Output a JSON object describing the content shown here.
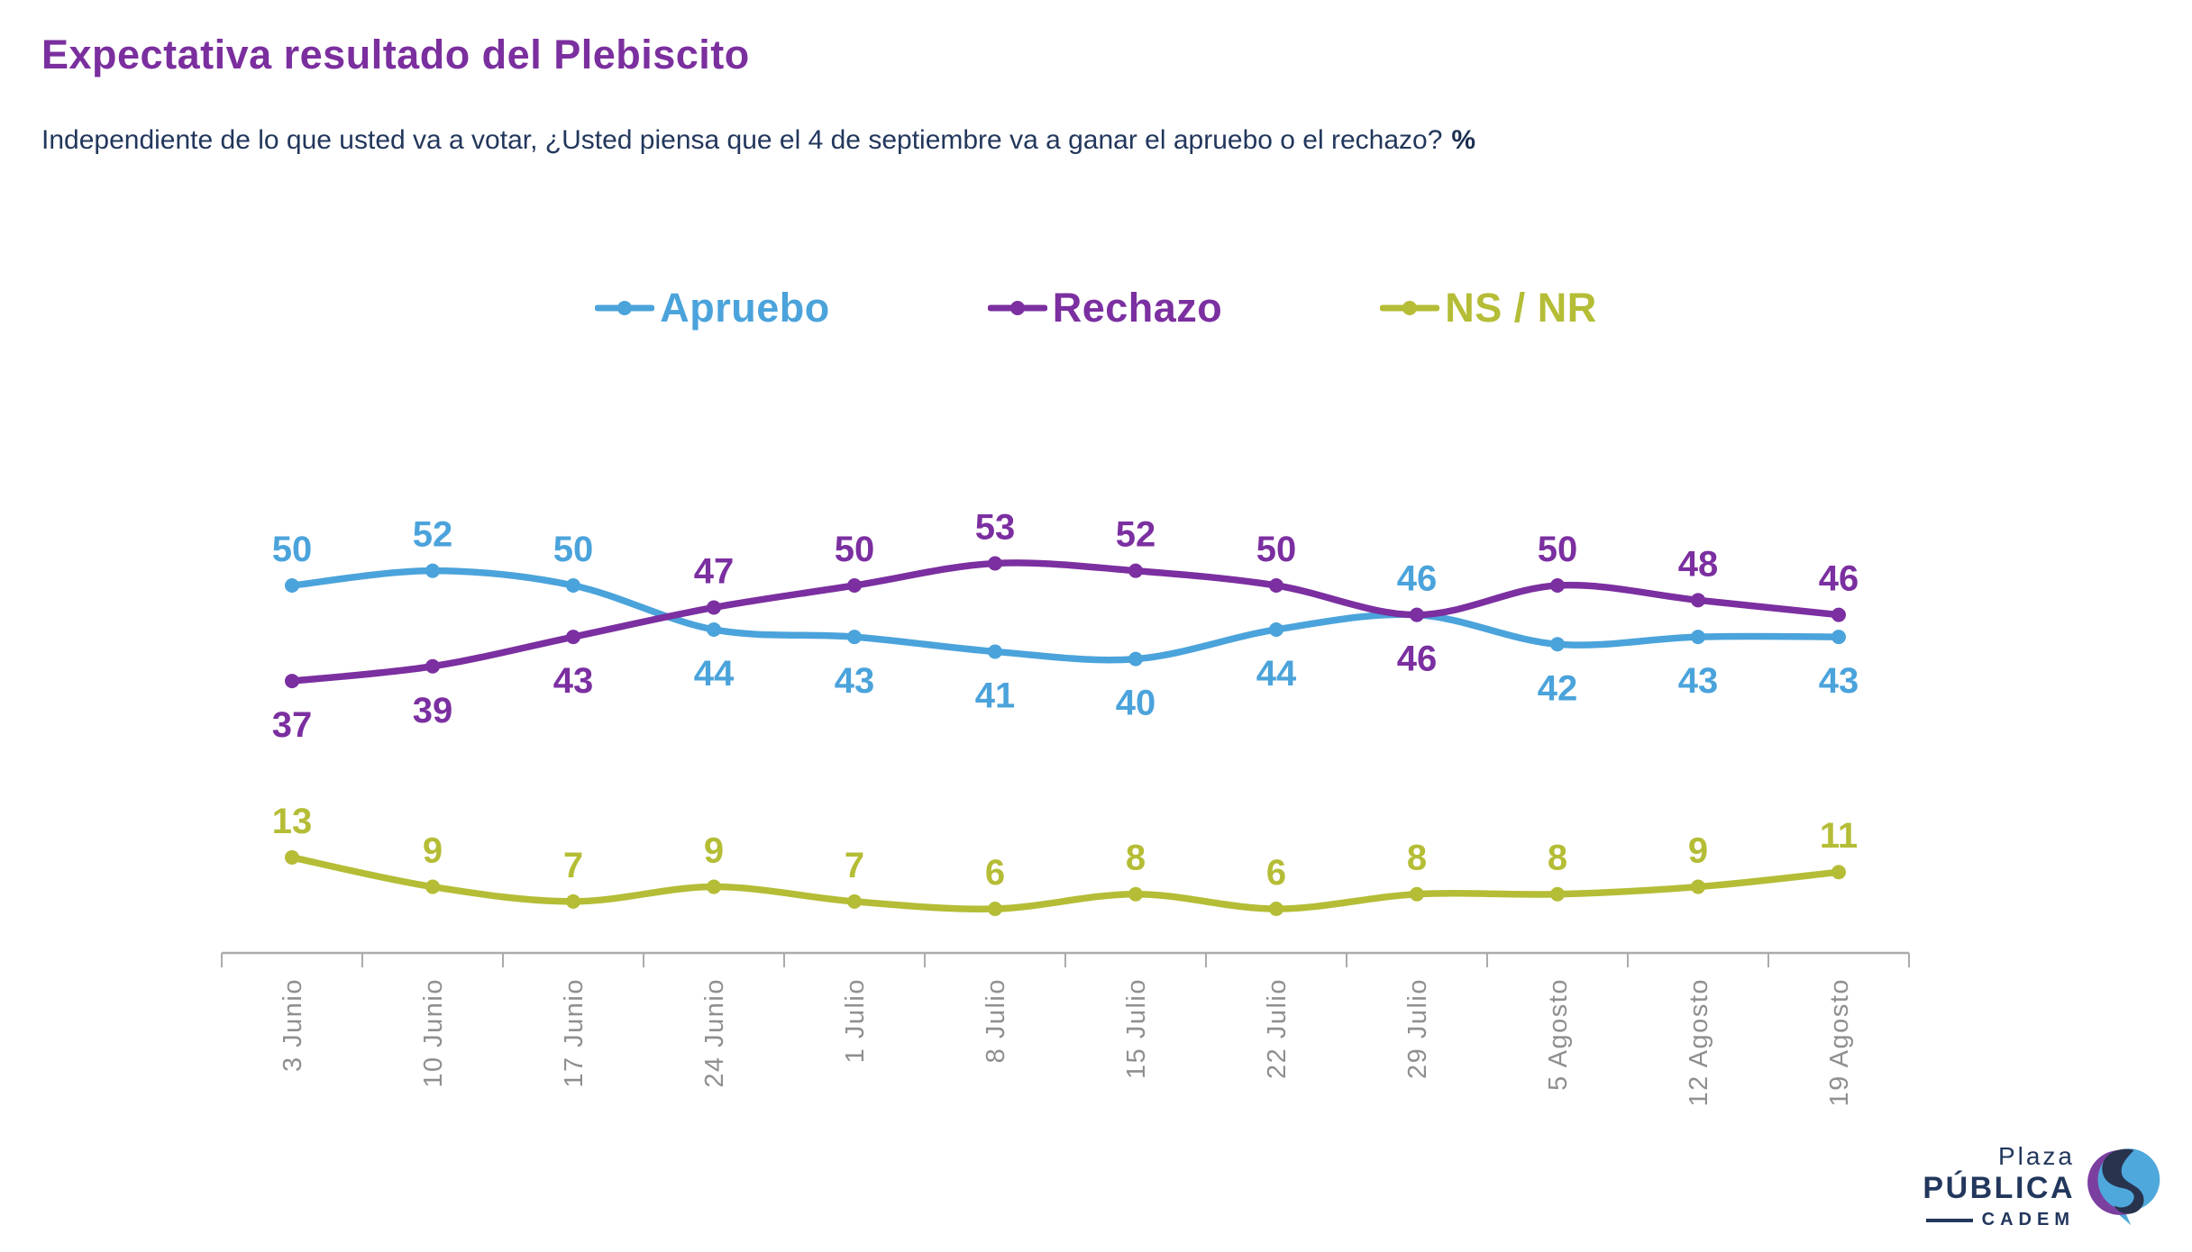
{
  "header": {
    "title": "Expectativa resultado del Plebiscito",
    "subtitle": "Independiente de lo que usted va a votar, ¿Usted piensa que el 4 de septiembre va a ganar el apruebo o el rechazo?",
    "subtitle_suffix": "%"
  },
  "chart_data": {
    "type": "line",
    "title": "Expectativa resultado del Plebiscito",
    "units": "%",
    "categories": [
      "3 Junio",
      "10 Junio",
      "17 Junio",
      "24 Junio",
      "1 Julio",
      "8 Julio",
      "15 Julio",
      "22 Julio",
      "29 Julio",
      "5 Agosto",
      "12 Agosto",
      "19 Agosto"
    ],
    "series": [
      {
        "name": "Apruebo",
        "color": "#4ba3db",
        "values": [
          50,
          52,
          50,
          44,
          43,
          41,
          40,
          44,
          46,
          42,
          43,
          43
        ]
      },
      {
        "name": "Rechazo",
        "color": "#7b2fa0",
        "values": [
          37,
          39,
          43,
          47,
          50,
          53,
          52,
          50,
          46,
          50,
          48,
          46
        ]
      },
      {
        "name": "NS / NR",
        "color": "#b4bd35",
        "values": [
          13,
          9,
          7,
          9,
          7,
          6,
          8,
          6,
          8,
          8,
          9,
          11
        ]
      }
    ],
    "ylim": [
      0,
      60
    ],
    "grid": false,
    "legend_position": "top",
    "data_labels": true,
    "x_axis_labels_rotated": true
  },
  "colors": {
    "title": "#7b2f9e",
    "subtitle": "#22375c",
    "axis": "#ababab",
    "x_tick_label": "#8f8f8f",
    "logo_navy": "#22375c",
    "logo_blue": "#4fa8dc",
    "logo_purple": "#7b3fa0",
    "logo_dark": "#28334e"
  },
  "logo": {
    "line1": "Plaza",
    "line2": "PÚBLICA",
    "line3": "CADEM"
  }
}
